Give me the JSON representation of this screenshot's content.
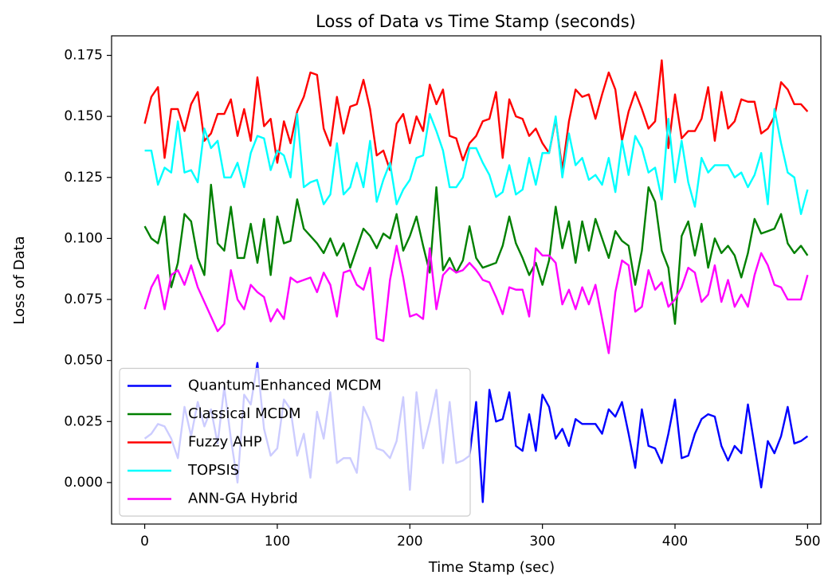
{
  "chart_data": {
    "type": "line",
    "title": "Loss of Data vs Time Stamp (seconds)",
    "x_label": "Time Stamp (sec)",
    "y_label": "Loss of Data",
    "xlim": [
      -25,
      510
    ],
    "ylim": [
      -0.017,
      0.183
    ],
    "xticks": [
      0,
      100,
      200,
      300,
      400,
      500
    ],
    "yticks": [
      {
        "value": 0,
        "label": "0.000"
      },
      {
        "value": 0.025,
        "label": "0.025"
      },
      {
        "value": 0.05,
        "label": "0.050"
      },
      {
        "value": 0.075,
        "label": "0.075"
      },
      {
        "value": 0.1,
        "label": "0.100"
      },
      {
        "value": 0.125,
        "label": "0.125"
      },
      {
        "value": 0.15,
        "label": "0.150"
      },
      {
        "value": 0.175,
        "label": "0.175"
      }
    ],
    "legend": "lower left",
    "x": [
      0,
      5,
      10,
      15,
      20,
      25,
      30,
      35,
      40,
      45,
      50,
      55,
      60,
      65,
      70,
      75,
      80,
      85,
      90,
      95,
      100,
      105,
      110,
      115,
      120,
      125,
      130,
      135,
      140,
      145,
      150,
      155,
      160,
      165,
      170,
      175,
      180,
      185,
      190,
      195,
      200,
      205,
      210,
      215,
      220,
      225,
      230,
      235,
      240,
      245,
      250,
      255,
      260,
      265,
      270,
      275,
      280,
      285,
      290,
      295,
      300,
      305,
      310,
      315,
      320,
      325,
      330,
      335,
      340,
      345,
      350,
      355,
      360,
      365,
      370,
      375,
      380,
      385,
      390,
      395,
      400,
      405,
      410,
      415,
      420,
      425,
      430,
      435,
      440,
      445,
      450,
      455,
      460,
      465,
      470,
      475,
      480,
      485,
      490,
      495,
      500
    ],
    "series": [
      {
        "name": "Quantum-Enhanced MCDM",
        "color": "#0000ff",
        "values": [
          0.018,
          0.02,
          0.024,
          0.023,
          0.018,
          0.01,
          0.031,
          0.019,
          0.033,
          0.023,
          0.03,
          0.016,
          0.039,
          0.018,
          0.0,
          0.036,
          0.032,
          0.049,
          0.022,
          0.011,
          0.014,
          0.034,
          0.03,
          0.011,
          0.02,
          0.002,
          0.029,
          0.018,
          0.037,
          0.008,
          0.01,
          0.01,
          0.004,
          0.031,
          0.025,
          0.014,
          0.013,
          0.01,
          0.017,
          0.035,
          -0.003,
          0.037,
          0.014,
          0.025,
          0.038,
          0.008,
          0.033,
          0.008,
          0.009,
          0.011,
          0.033,
          -0.008,
          0.038,
          0.025,
          0.026,
          0.037,
          0.015,
          0.013,
          0.028,
          0.013,
          0.036,
          0.031,
          0.018,
          0.022,
          0.015,
          0.026,
          0.024,
          0.024,
          0.024,
          0.02,
          0.03,
          0.027,
          0.033,
          0.02,
          0.006,
          0.03,
          0.015,
          0.014,
          0.008,
          0.02,
          0.034,
          0.01,
          0.011,
          0.02,
          0.026,
          0.028,
          0.027,
          0.015,
          0.009,
          0.015,
          0.012,
          0.032,
          0.015,
          -0.002,
          0.017,
          0.012,
          0.019,
          0.031,
          0.016,
          0.017,
          0.019
        ]
      },
      {
        "name": "Classical MCDM",
        "color": "#008000",
        "values": [
          0.105,
          0.1,
          0.098,
          0.109,
          0.08,
          0.09,
          0.11,
          0.107,
          0.092,
          0.085,
          0.122,
          0.098,
          0.095,
          0.113,
          0.092,
          0.092,
          0.106,
          0.09,
          0.108,
          0.085,
          0.109,
          0.098,
          0.099,
          0.116,
          0.104,
          0.101,
          0.098,
          0.094,
          0.1,
          0.093,
          0.098,
          0.088,
          0.096,
          0.104,
          0.101,
          0.096,
          0.102,
          0.1,
          0.11,
          0.095,
          0.101,
          0.109,
          0.097,
          0.086,
          0.121,
          0.087,
          0.092,
          0.086,
          0.091,
          0.105,
          0.092,
          0.088,
          0.089,
          0.09,
          0.097,
          0.109,
          0.098,
          0.092,
          0.085,
          0.09,
          0.081,
          0.091,
          0.113,
          0.096,
          0.107,
          0.09,
          0.107,
          0.095,
          0.108,
          0.1,
          0.092,
          0.103,
          0.099,
          0.097,
          0.081,
          0.095,
          0.121,
          0.115,
          0.095,
          0.088,
          0.065,
          0.101,
          0.107,
          0.093,
          0.106,
          0.088,
          0.1,
          0.094,
          0.097,
          0.093,
          0.084,
          0.094,
          0.108,
          0.102,
          0.103,
          0.104,
          0.11,
          0.098,
          0.094,
          0.097,
          0.093
        ]
      },
      {
        "name": "Fuzzy AHP",
        "color": "#ff0000",
        "values": [
          0.147,
          0.158,
          0.162,
          0.133,
          0.153,
          0.153,
          0.144,
          0.155,
          0.16,
          0.14,
          0.143,
          0.151,
          0.151,
          0.157,
          0.142,
          0.153,
          0.14,
          0.166,
          0.146,
          0.149,
          0.131,
          0.148,
          0.139,
          0.152,
          0.158,
          0.168,
          0.167,
          0.145,
          0.138,
          0.158,
          0.143,
          0.154,
          0.155,
          0.165,
          0.153,
          0.134,
          0.136,
          0.128,
          0.147,
          0.151,
          0.139,
          0.15,
          0.144,
          0.163,
          0.155,
          0.161,
          0.142,
          0.141,
          0.132,
          0.139,
          0.142,
          0.148,
          0.149,
          0.16,
          0.133,
          0.157,
          0.15,
          0.149,
          0.142,
          0.145,
          0.139,
          0.135,
          0.149,
          0.128,
          0.148,
          0.161,
          0.158,
          0.159,
          0.149,
          0.159,
          0.168,
          0.161,
          0.14,
          0.152,
          0.16,
          0.153,
          0.145,
          0.148,
          0.173,
          0.137,
          0.159,
          0.141,
          0.144,
          0.144,
          0.149,
          0.162,
          0.14,
          0.16,
          0.145,
          0.148,
          0.157,
          0.156,
          0.156,
          0.143,
          0.145,
          0.15,
          0.164,
          0.161,
          0.155,
          0.155,
          0.152
        ]
      },
      {
        "name": "TOPSIS",
        "color": "#00ffff",
        "values": [
          0.136,
          0.136,
          0.122,
          0.129,
          0.127,
          0.148,
          0.127,
          0.128,
          0.123,
          0.145,
          0.137,
          0.14,
          0.125,
          0.125,
          0.131,
          0.121,
          0.135,
          0.142,
          0.141,
          0.128,
          0.136,
          0.134,
          0.125,
          0.151,
          0.121,
          0.123,
          0.124,
          0.114,
          0.118,
          0.139,
          0.118,
          0.121,
          0.131,
          0.121,
          0.14,
          0.115,
          0.124,
          0.131,
          0.114,
          0.12,
          0.124,
          0.133,
          0.134,
          0.151,
          0.144,
          0.136,
          0.121,
          0.121,
          0.125,
          0.137,
          0.137,
          0.131,
          0.126,
          0.117,
          0.119,
          0.13,
          0.118,
          0.12,
          0.133,
          0.122,
          0.135,
          0.135,
          0.15,
          0.125,
          0.143,
          0.13,
          0.133,
          0.124,
          0.126,
          0.122,
          0.133,
          0.119,
          0.14,
          0.126,
          0.142,
          0.137,
          0.127,
          0.129,
          0.116,
          0.149,
          0.123,
          0.14,
          0.123,
          0.113,
          0.133,
          0.127,
          0.13,
          0.13,
          0.13,
          0.125,
          0.127,
          0.121,
          0.126,
          0.135,
          0.114,
          0.153,
          0.139,
          0.127,
          0.125,
          0.11,
          0.12
        ]
      },
      {
        "name": "ANN-GA Hybrid",
        "color": "#ff00ff",
        "values": [
          0.071,
          0.08,
          0.085,
          0.071,
          0.085,
          0.087,
          0.081,
          0.089,
          0.08,
          0.074,
          0.068,
          0.062,
          0.065,
          0.087,
          0.075,
          0.071,
          0.081,
          0.078,
          0.076,
          0.066,
          0.071,
          0.067,
          0.084,
          0.082,
          0.083,
          0.084,
          0.078,
          0.086,
          0.081,
          0.068,
          0.086,
          0.087,
          0.081,
          0.079,
          0.088,
          0.059,
          0.058,
          0.083,
          0.097,
          0.084,
          0.068,
          0.069,
          0.067,
          0.096,
          0.071,
          0.085,
          0.088,
          0.086,
          0.087,
          0.09,
          0.087,
          0.083,
          0.082,
          0.076,
          0.069,
          0.08,
          0.079,
          0.079,
          0.068,
          0.096,
          0.093,
          0.093,
          0.09,
          0.073,
          0.079,
          0.071,
          0.08,
          0.073,
          0.081,
          0.067,
          0.053,
          0.078,
          0.091,
          0.089,
          0.07,
          0.072,
          0.087,
          0.079,
          0.082,
          0.072,
          0.075,
          0.08,
          0.088,
          0.086,
          0.074,
          0.077,
          0.089,
          0.074,
          0.083,
          0.072,
          0.077,
          0.072,
          0.085,
          0.094,
          0.089,
          0.081,
          0.08,
          0.075,
          0.075,
          0.075,
          0.085
        ]
      }
    ]
  }
}
